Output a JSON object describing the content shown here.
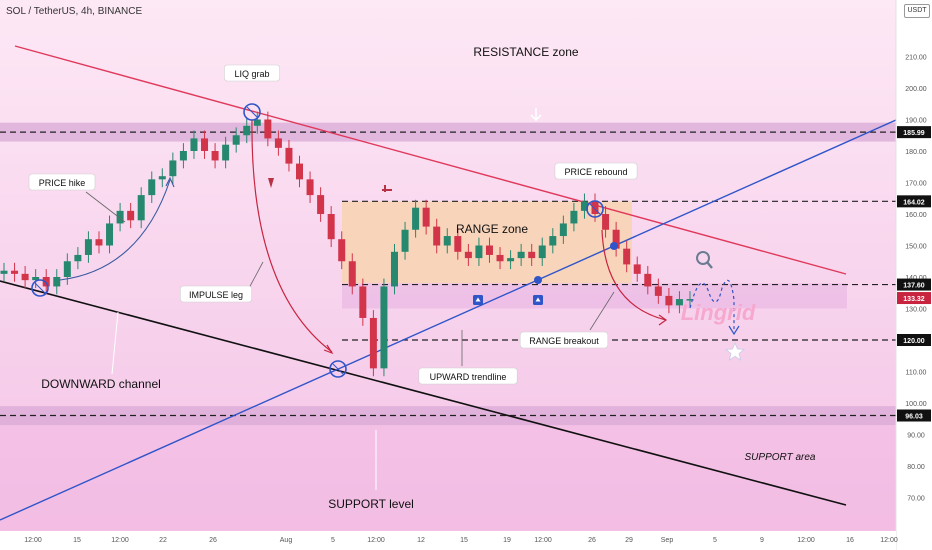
{
  "header": {
    "symbol_line": "SOL / TetherUS, 4h, BINANCE",
    "currency": "USDT"
  },
  "colors": {
    "background_pink": "#f8cdea",
    "resistance_band": "#d9a9d6",
    "range_box": "#f7d3a8",
    "channel_red": "#e0385b",
    "trend_blue": "#2f55c9",
    "support_black": "#111111",
    "candle_up": "#26896f",
    "candle_down": "#d2344a",
    "label_bg": "#ffffff",
    "axis_text": "#555555"
  },
  "annotations": {
    "liq_grab": "LIQ grab",
    "price_hike": "PRICE hike",
    "impulse_leg": "IMPULSE leg",
    "downward_channel": "DOWNWARD channel",
    "support_level": "SUPPORT level",
    "upward_trendline": "UPWARD trendline",
    "range_zone": "RANGE zone",
    "price_rebound": "PRICE rebound",
    "range_breakout": "RANGE breakout",
    "resistance_zone": "RESISTANCE zone",
    "support_area": "SUPPORT area",
    "watermark": "Lingrid"
  },
  "chart_data": {
    "type": "line",
    "title": "SOL / TetherUS, 4h, BINANCE",
    "ylabel": "USDT",
    "ylim": [
      60,
      222
    ],
    "grid": false,
    "y_ticks": [
      60,
      70,
      80,
      90,
      100,
      110,
      120,
      130,
      140,
      150,
      160,
      170,
      180,
      190,
      200,
      210,
      220
    ],
    "x_tick_labels": [
      "12:00",
      "15",
      "12:00",
      "22",
      "26",
      "Aug",
      "5",
      "12:00",
      "12",
      "15",
      "19",
      "12:00",
      "26",
      "29",
      "Sep",
      "5",
      "9",
      "12:00",
      "16",
      "12:00"
    ],
    "price_levels": [
      {
        "value": 185.99,
        "label": "185.99",
        "style": "dashed"
      },
      {
        "value": 164.02,
        "label": "164.02",
        "style": "dashed"
      },
      {
        "value": 137.6,
        "label": "137.60",
        "style": "dashed"
      },
      {
        "value": 133.32,
        "label": "133.32",
        "style": "current"
      },
      {
        "value": 120.0,
        "label": "120.00",
        "style": "dashed"
      },
      {
        "value": 96.03,
        "label": "96.03",
        "style": "dashed"
      }
    ],
    "zones": [
      {
        "name": "RESISTANCE zone",
        "from": 183,
        "to": 189
      },
      {
        "name": "RANGE zone",
        "from": 138,
        "to": 164
      },
      {
        "name": "SUPPORT zone",
        "from": 93,
        "to": 99
      }
    ],
    "series": [
      {
        "name": "SOL price (approx close)",
        "values": [
          142,
          141,
          139,
          140,
          137,
          140,
          145,
          147,
          152,
          150,
          157,
          161,
          158,
          166,
          171,
          172,
          177,
          180,
          184,
          180,
          177,
          182,
          185,
          188,
          190,
          184,
          181,
          176,
          171,
          166,
          160,
          152,
          145,
          137,
          127,
          111,
          137,
          148,
          155,
          162,
          156,
          150,
          153,
          148,
          146,
          150,
          147,
          145,
          146,
          148,
          146,
          150,
          153,
          157,
          161,
          164,
          160,
          155,
          149,
          144,
          141,
          137,
          134,
          131,
          133,
          133
        ]
      }
    ]
  }
}
